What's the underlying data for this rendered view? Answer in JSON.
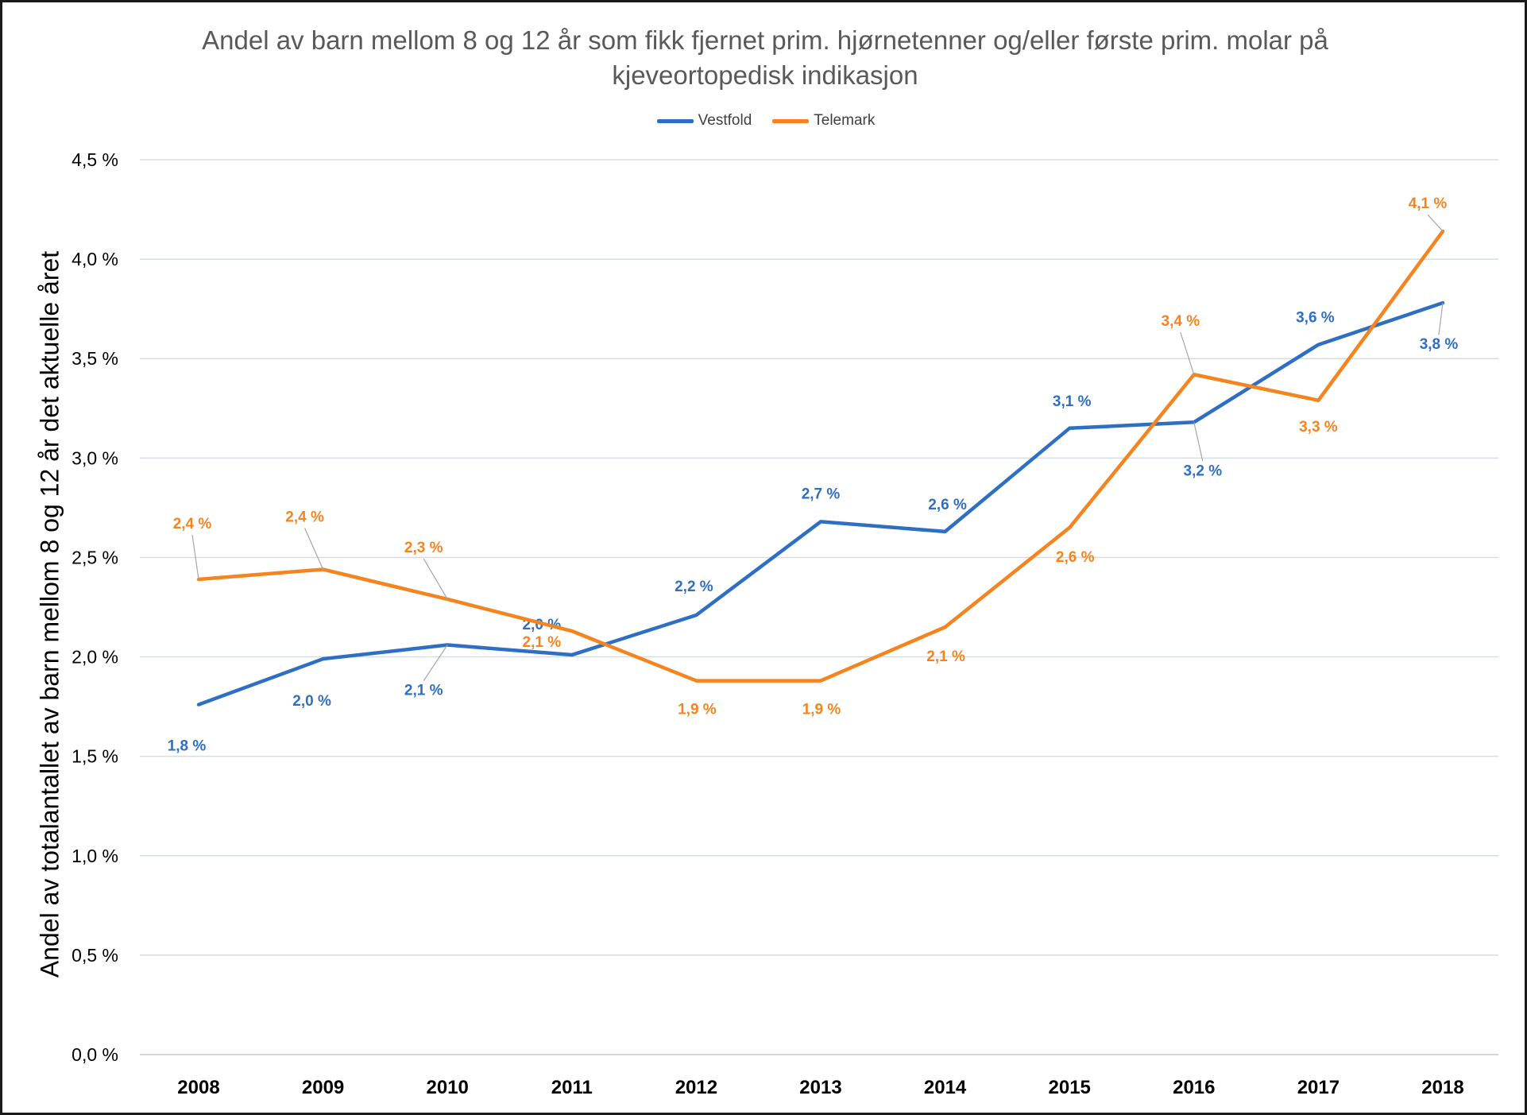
{
  "chart_data": {
    "type": "line",
    "title": "Andel av barn mellom 8 og 12 år som fikk fjernet prim. hjørnetenner og/eller første prim. molar på kjeveortopedisk indikasjon",
    "xlabel": "",
    "ylabel": "Andel av totalantallet av barn mellom 8 og 12 år det aktuelle året",
    "categories": [
      "2008",
      "2009",
      "2010",
      "2011",
      "2012",
      "2013",
      "2014",
      "2015",
      "2016",
      "2017",
      "2018"
    ],
    "y_ticks": [
      "0,0 %",
      "0,5 %",
      "1,0 %",
      "1,5 %",
      "2,0 %",
      "2,5 %",
      "3,0 %",
      "3,5 %",
      "4,0 %",
      "4,5 %"
    ],
    "ylim": [
      0,
      4.5
    ],
    "grid": true,
    "legend_position": "top",
    "series": [
      {
        "name": "Vestfold",
        "color": "#2e6fc4",
        "values": [
          1.76,
          1.99,
          2.06,
          2.01,
          2.21,
          2.68,
          2.63,
          3.15,
          3.18,
          3.57,
          3.78
        ],
        "labels": [
          "1,8 %",
          "2,0 %",
          "2,1 %",
          "2,0 %",
          "2,2 %",
          "2,7 %",
          "2,6 %",
          "3,1 %",
          "3,2 %",
          "3,6 %",
          "3,8 %"
        ]
      },
      {
        "name": "Telemark",
        "color": "#f5841f",
        "values": [
          2.39,
          2.44,
          2.29,
          2.13,
          1.88,
          1.88,
          2.15,
          2.65,
          3.42,
          3.29,
          4.14
        ],
        "labels": [
          "2,4 %",
          "2,4 %",
          "2,3 %",
          "2,1 %",
          "1,9 %",
          "1,9 %",
          "2,1 %",
          "2,6 %",
          "3,4 %",
          "3,3 %",
          "4,1 %"
        ]
      }
    ]
  }
}
